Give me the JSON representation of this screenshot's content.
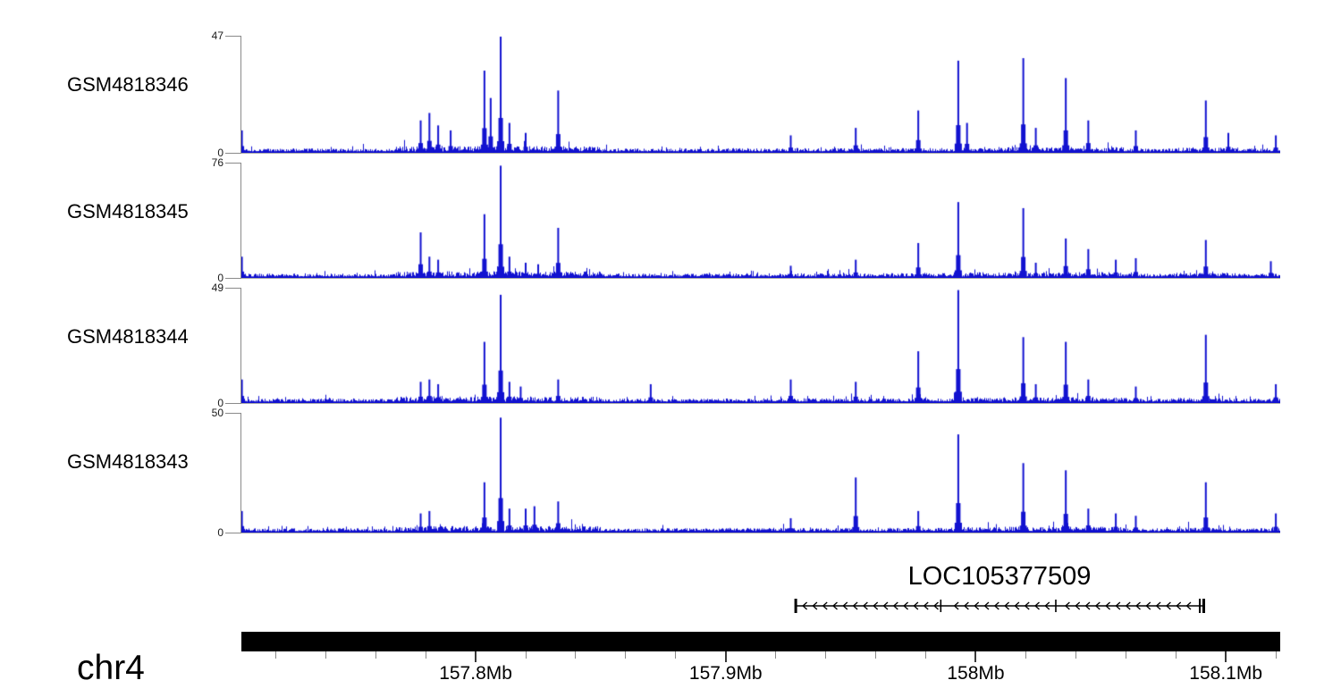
{
  "figure": {
    "background": "#ffffff",
    "colors": {
      "signal": "#1212d0",
      "axis_gray": "#8a8a8a",
      "tick_minor": "#8a8a8a",
      "tick_major": "#3a3a3a",
      "chromosome_bar": "#000000",
      "text": "#000000"
    }
  },
  "chart_data": {
    "type": "area",
    "description": "Genome coverage tracks for four samples over chr4 with gene model and coordinate axis",
    "tracks": [
      {
        "name": "GSM4818346",
        "ymax": 47,
        "ymin": 0,
        "peaks": [
          [
            157.7065,
            9
          ],
          [
            157.778,
            13
          ],
          [
            157.7815,
            16
          ],
          [
            157.785,
            11
          ],
          [
            157.79,
            9
          ],
          [
            157.8035,
            33
          ],
          [
            157.806,
            22
          ],
          [
            157.81,
            47
          ],
          [
            157.8135,
            12
          ],
          [
            157.82,
            8
          ],
          [
            157.833,
            25
          ],
          [
            157.926,
            7
          ],
          [
            157.952,
            10
          ],
          [
            157.977,
            17
          ],
          [
            157.993,
            37
          ],
          [
            157.9965,
            12
          ],
          [
            158.019,
            38
          ],
          [
            158.024,
            10
          ],
          [
            158.036,
            30
          ],
          [
            158.045,
            13
          ],
          [
            158.064,
            9
          ],
          [
            158.092,
            21
          ],
          [
            158.101,
            8
          ],
          [
            158.12,
            7
          ]
        ]
      },
      {
        "name": "GSM4818345",
        "ymax": 76,
        "ymin": 0,
        "peaks": [
          [
            157.7065,
            14
          ],
          [
            157.778,
            30
          ],
          [
            157.7815,
            14
          ],
          [
            157.785,
            12
          ],
          [
            157.8035,
            42
          ],
          [
            157.81,
            74
          ],
          [
            157.8135,
            14
          ],
          [
            157.82,
            10
          ],
          [
            157.825,
            9
          ],
          [
            157.833,
            33
          ],
          [
            157.926,
            8
          ],
          [
            157.952,
            12
          ],
          [
            157.977,
            23
          ],
          [
            157.993,
            50
          ],
          [
            158.019,
            46
          ],
          [
            158.024,
            10
          ],
          [
            158.036,
            26
          ],
          [
            158.045,
            19
          ],
          [
            158.056,
            12
          ],
          [
            158.064,
            13
          ],
          [
            158.092,
            25
          ],
          [
            158.118,
            11
          ]
        ]
      },
      {
        "name": "GSM4818344",
        "ymax": 49,
        "ymin": 0,
        "peaks": [
          [
            157.7065,
            10
          ],
          [
            157.778,
            9
          ],
          [
            157.7815,
            10
          ],
          [
            157.785,
            8
          ],
          [
            157.8035,
            26
          ],
          [
            157.81,
            46
          ],
          [
            157.8135,
            9
          ],
          [
            157.818,
            7
          ],
          [
            157.833,
            10
          ],
          [
            157.87,
            8
          ],
          [
            157.926,
            10
          ],
          [
            157.952,
            9
          ],
          [
            157.977,
            22
          ],
          [
            157.993,
            48
          ],
          [
            158.019,
            28
          ],
          [
            158.024,
            8
          ],
          [
            158.036,
            26
          ],
          [
            158.045,
            10
          ],
          [
            158.064,
            7
          ],
          [
            158.092,
            29
          ],
          [
            158.12,
            8
          ]
        ]
      },
      {
        "name": "GSM4818343",
        "ymax": 50,
        "ymin": 0,
        "peaks": [
          [
            157.7065,
            9
          ],
          [
            157.778,
            8
          ],
          [
            157.7815,
            9
          ],
          [
            157.8035,
            21
          ],
          [
            157.81,
            48
          ],
          [
            157.8135,
            10
          ],
          [
            157.82,
            10
          ],
          [
            157.8235,
            11
          ],
          [
            157.833,
            13
          ],
          [
            157.926,
            6
          ],
          [
            157.952,
            23
          ],
          [
            157.977,
            9
          ],
          [
            157.993,
            41
          ],
          [
            158.019,
            29
          ],
          [
            158.036,
            26
          ],
          [
            158.045,
            10
          ],
          [
            158.056,
            8
          ],
          [
            158.064,
            7
          ],
          [
            158.092,
            21
          ],
          [
            158.12,
            8
          ]
        ]
      }
    ],
    "gene_track": {
      "label": "LOC105377509",
      "start_mb": 157.928,
      "end_mb": 158.091,
      "strand": "-",
      "internal_boundaries_mb": [
        157.986,
        158.032
      ]
    },
    "x_axis": {
      "chromosome": "chr4",
      "unit": "Mb",
      "range_mb": [
        157.706,
        158.122
      ],
      "minor_ticks": {
        "start": 157.72,
        "step": 0.02,
        "count": 21
      },
      "major_ticks": [
        {
          "mb": 157.8,
          "label": "157.8Mb"
        },
        {
          "mb": 157.9,
          "label": "157.9Mb"
        },
        {
          "mb": 158.0,
          "label": "158Mb"
        },
        {
          "mb": 158.1,
          "label": "158.1Mb"
        }
      ]
    }
  }
}
